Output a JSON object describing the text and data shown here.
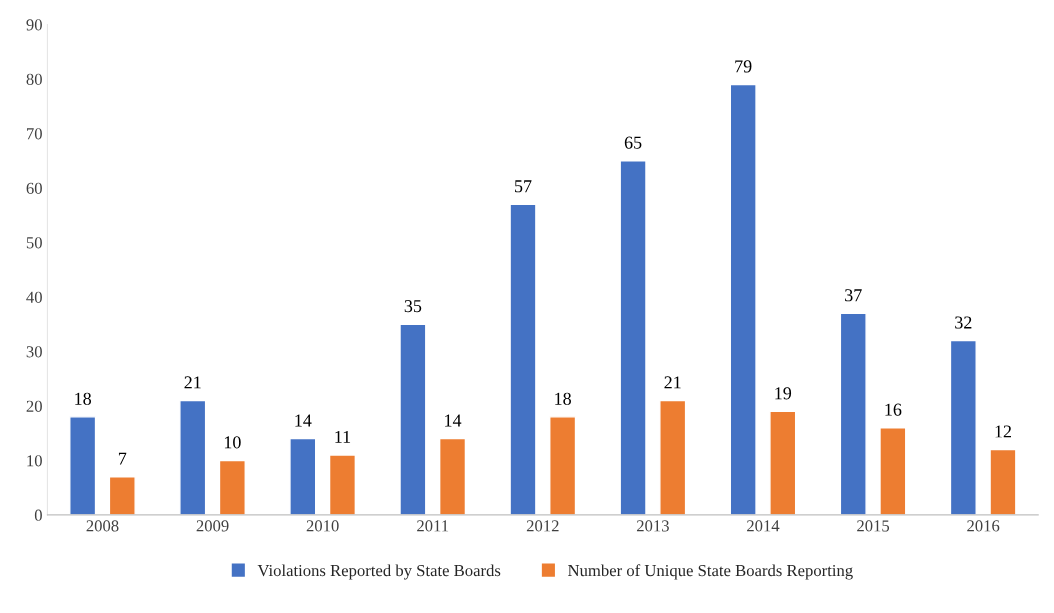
{
  "chart_data": {
    "type": "bar",
    "categories": [
      "2008",
      "2009",
      "2010",
      "2011",
      "2012",
      "2013",
      "2014",
      "2015",
      "2016"
    ],
    "series": [
      {
        "name": "Violations Reported by State Boards",
        "color": "#4472c4",
        "values": [
          18,
          21,
          14,
          35,
          57,
          65,
          79,
          37,
          32
        ]
      },
      {
        "name": "Number of Unique State Boards Reporting",
        "color": "#ed7d31",
        "values": [
          7,
          10,
          11,
          14,
          18,
          21,
          19,
          16,
          12
        ]
      }
    ],
    "ylim": [
      0,
      90
    ],
    "yticks": [
      0,
      10,
      20,
      30,
      40,
      50,
      60,
      70,
      80,
      90
    ],
    "grid": false,
    "legend": "bottom",
    "data_labels": true
  }
}
